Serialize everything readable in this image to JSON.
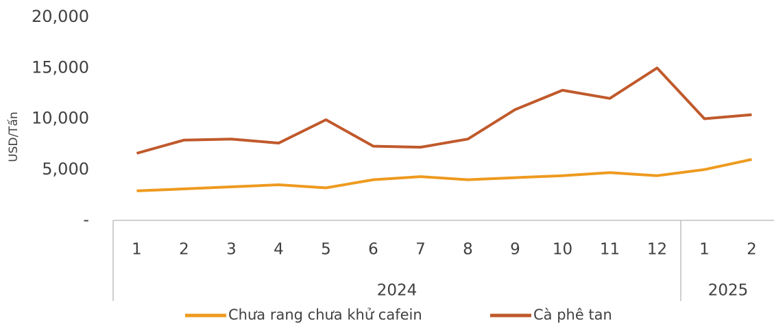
{
  "chart_data": {
    "type": "line",
    "y_label": "USD/Tấn",
    "categories": [
      "1",
      "2",
      "3",
      "4",
      "5",
      "6",
      "7",
      "8",
      "9",
      "10",
      "11",
      "12",
      "1",
      "2"
    ],
    "x_groups": [
      {
        "label": "2024",
        "count": 12
      },
      {
        "label": "2025",
        "count": 2
      }
    ],
    "series": [
      {
        "name": "Chưa rang chưa khử cafein",
        "color": "#ee9a1f",
        "values": [
          2900,
          3100,
          3300,
          3500,
          3200,
          4000,
          4300,
          4000,
          4200,
          4400,
          4700,
          4400,
          5000,
          6000
        ]
      },
      {
        "name": "Cà phê tan",
        "color": "#c0592b",
        "values": [
          6600,
          7900,
          8000,
          7600,
          9900,
          7300,
          7200,
          8000,
          10900,
          12800,
          12000,
          15000,
          10000,
          10400
        ]
      }
    ],
    "ylim": [
      0,
      20000
    ],
    "yticks": [
      {
        "value": 0,
        "label": "-"
      },
      {
        "value": 5000,
        "label": "5,000"
      },
      {
        "value": 10000,
        "label": "10,000"
      },
      {
        "value": 15000,
        "label": "15,000"
      },
      {
        "value": 20000,
        "label": "20,000"
      }
    ],
    "legend": "bottom"
  }
}
